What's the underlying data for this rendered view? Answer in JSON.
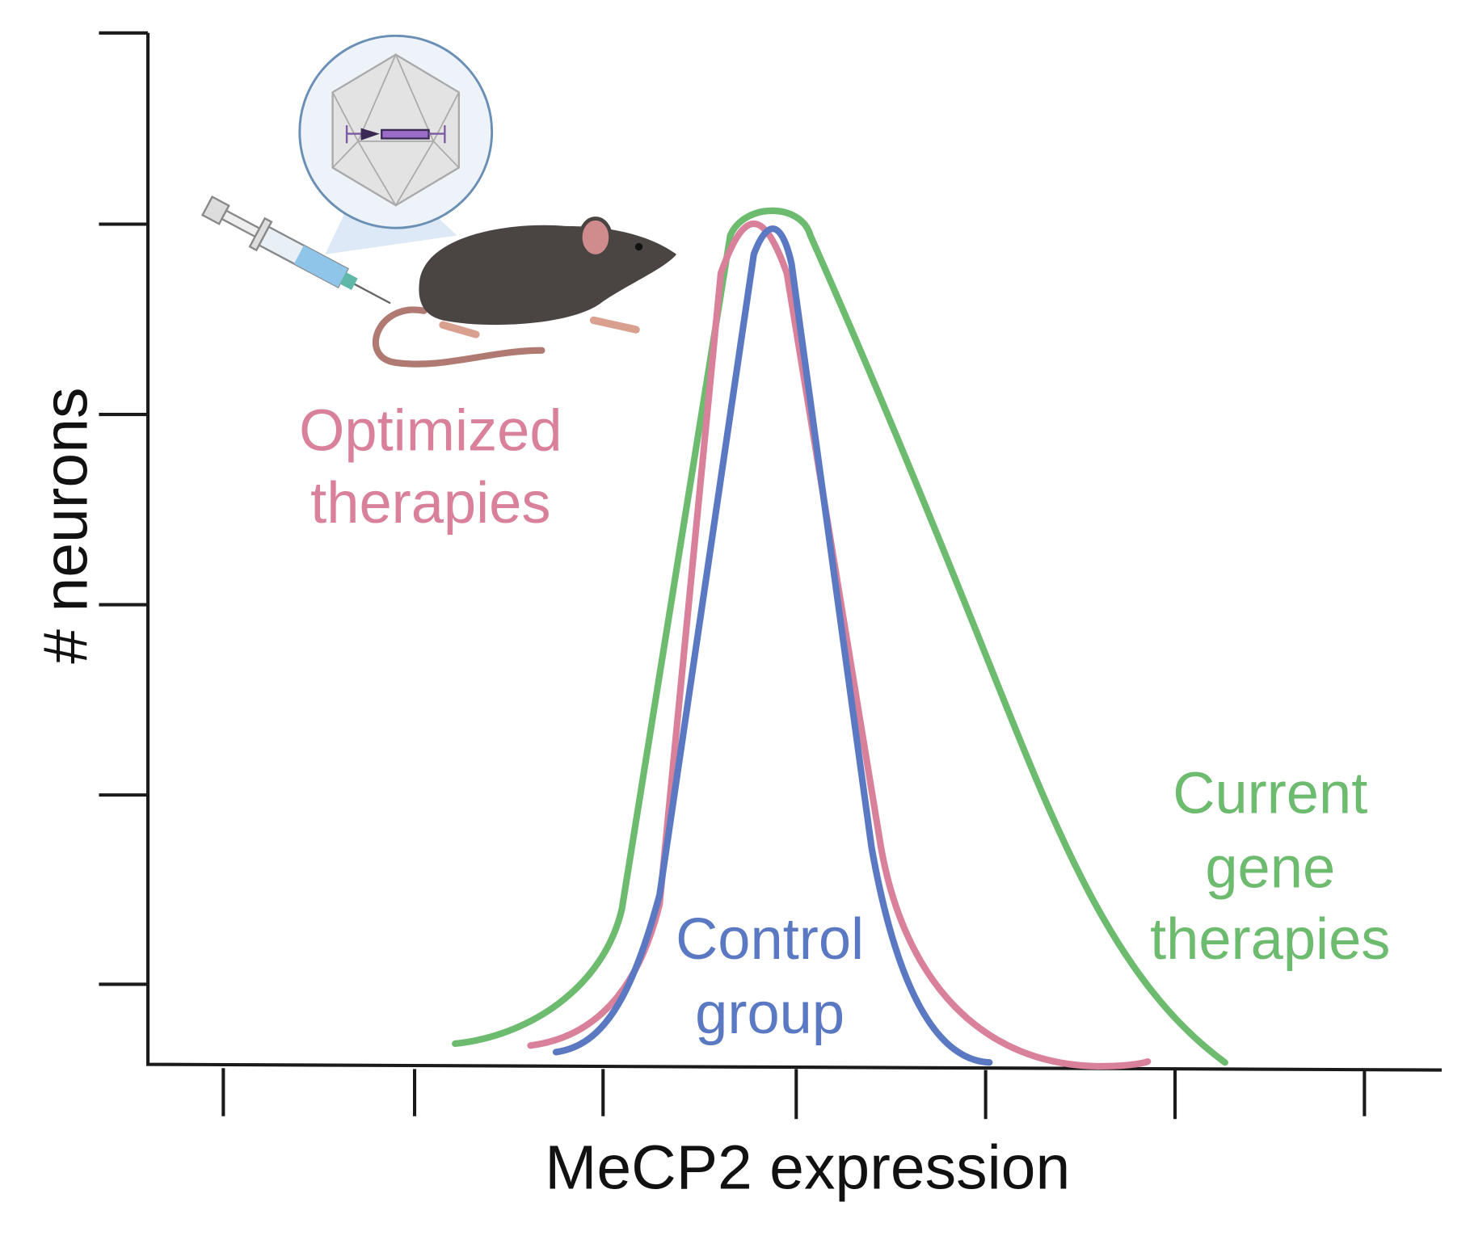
{
  "axes": {
    "x_label": "MeCP2 expression",
    "y_label": "# neurons"
  },
  "curves": [
    {
      "label_lines": [
        "Optimized",
        "therapies"
      ]
    },
    {
      "label_lines": [
        "Control",
        "group"
      ]
    },
    {
      "label_lines": [
        "Current",
        "gene",
        "therapies"
      ]
    }
  ]
}
